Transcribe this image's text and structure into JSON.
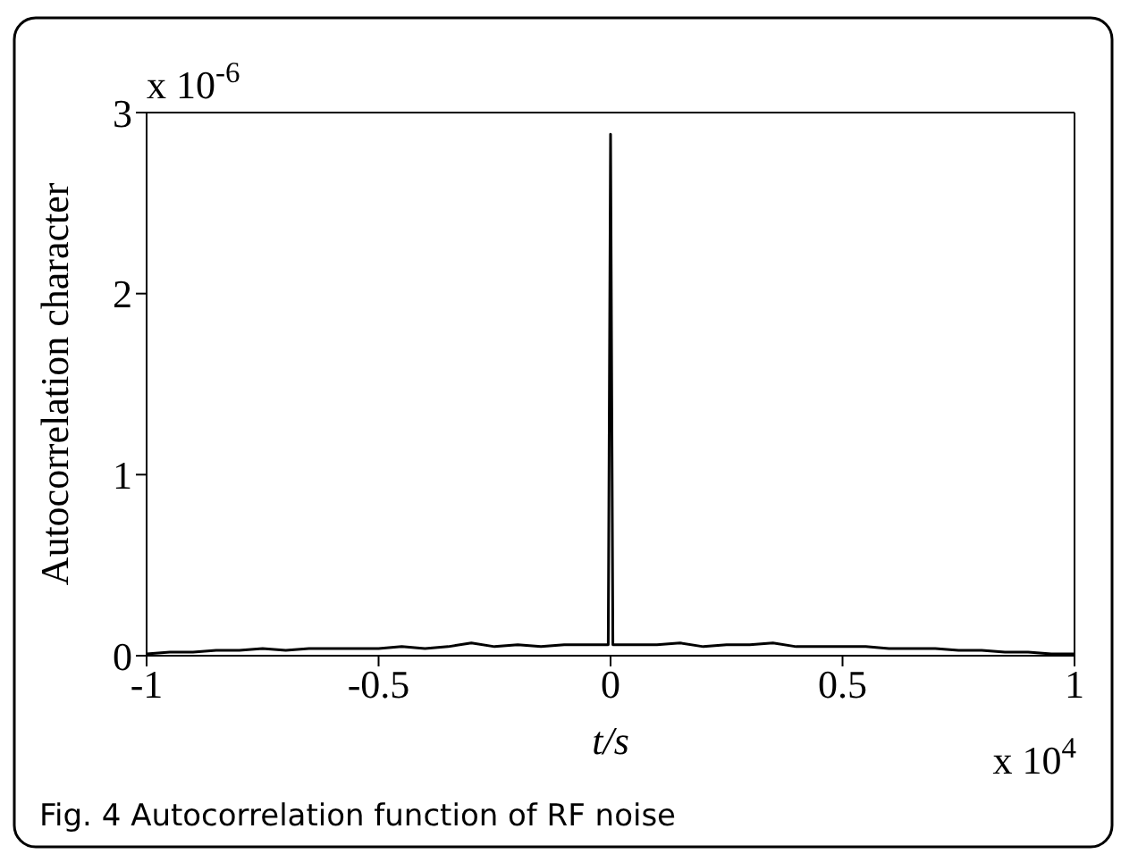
{
  "chart_data": {
    "type": "line",
    "xlabel": "t/s",
    "ylabel": "Autocorrelation character",
    "annotations": [
      "x 10$^{-6}$",
      "x 10$^{4}$",
      "Fig. 4 Autocorrelation function of RF noise"
    ],
    "x": [
      -1,
      -0.95,
      -0.9,
      -0.85,
      -0.8,
      -0.75,
      -0.7,
      -0.65,
      -0.6,
      -0.55,
      -0.5,
      -0.45,
      -0.4,
      -0.35,
      -0.3,
      -0.25,
      -0.2,
      -0.15,
      -0.1,
      -0.05,
      -0.005,
      0,
      0.005,
      0.05,
      0.1,
      0.15,
      0.2,
      0.25,
      0.3,
      0.35,
      0.4,
      0.45,
      0.5,
      0.55,
      0.6,
      0.65,
      0.7,
      0.75,
      0.8,
      0.85,
      0.9,
      0.95,
      1
    ],
    "series": [
      {
        "color": "#000000",
        "values": [
          0.01,
          0.02,
          0.02,
          0.03,
          0.03,
          0.04,
          0.03,
          0.04,
          0.04,
          0.04,
          0.04,
          0.05,
          0.04,
          0.05,
          0.07,
          0.05,
          0.06,
          0.05,
          0.06,
          0.06,
          0.06,
          2.88,
          0.06,
          0.06,
          0.06,
          0.07,
          0.05,
          0.06,
          0.06,
          0.07,
          0.05,
          0.05,
          0.05,
          0.05,
          0.04,
          0.04,
          0.04,
          0.03,
          0.03,
          0.02,
          0.02,
          0.01,
          0.01
        ]
      }
    ],
    "xlim": [
      -1,
      1
    ],
    "xticks": [
      -1,
      -0.5,
      0,
      0.5,
      1
    ],
    "ylim": [
      0,
      3
    ],
    "yticks": [
      0,
      1,
      2,
      3
    ],
    "grid": false,
    "marker": "none",
    "line_style": "solid"
  }
}
